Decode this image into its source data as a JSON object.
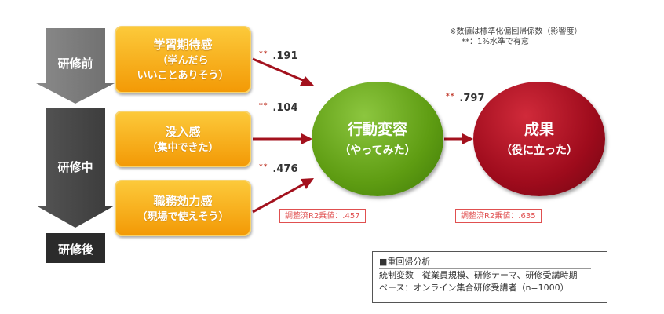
{
  "note": {
    "line1": "※数値は標準化偏回帰係数（影響度）",
    "line2": "**：1%水準で有意"
  },
  "stages": {
    "before": "研修前",
    "during": "研修中",
    "after": "研修後"
  },
  "factors": [
    {
      "title": "学習期待感",
      "sub1": "（学んだら",
      "sub2": "いいことありそう）",
      "coef": ".191",
      "stars": "**"
    },
    {
      "title": "没入感",
      "sub1": "（集中できた）",
      "sub2": "",
      "coef": ".104",
      "stars": "**"
    },
    {
      "title": "職務効力感",
      "sub1": "（現場で使えそう）",
      "sub2": "",
      "coef": ".476",
      "stars": "**"
    }
  ],
  "behavior": {
    "title": "行動変容",
    "sub": "（やってみた）",
    "r2": "調整済R2乗値：.457"
  },
  "outcome": {
    "title": "成果",
    "sub": "（役に立った）",
    "r2": "調整済R2乗値：.635"
  },
  "link": {
    "coef": ".797",
    "stars": "**"
  },
  "legend": {
    "title": "■重回帰分析",
    "line1": "統制変数｜従業員規模、研修テーマ、研修受講時期",
    "line2": "ベース：オンライン集合研修受講者（n=1000）"
  },
  "colors": {
    "stage_before": "#7a7a7a",
    "stage_during": "#444444",
    "stage_after": "#2b2b2b",
    "factor_box": "#f6a816",
    "behavior_circle": "#5e9c12",
    "outcome_circle": "#9e0b1c",
    "arrow": "#a3111d",
    "r2_border": "#e05050"
  }
}
